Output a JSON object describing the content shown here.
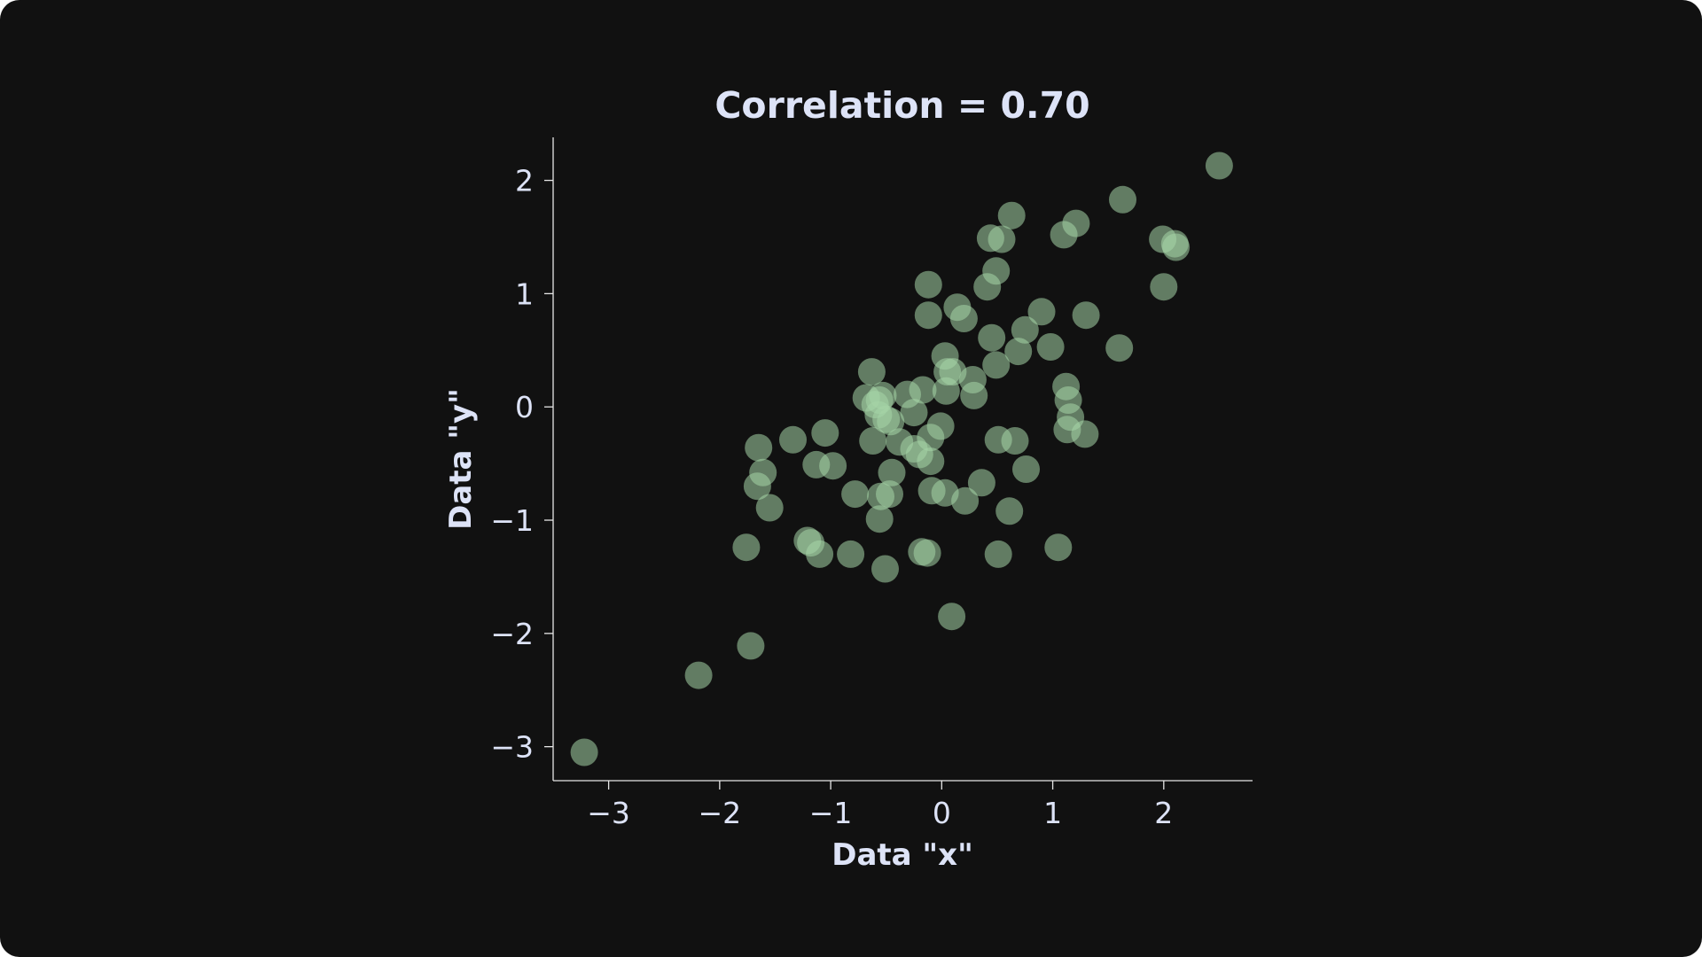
{
  "chart_data": {
    "type": "scatter",
    "title": "Correlation = 0.70",
    "xlabel": "Data \"x\"",
    "ylabel": "Data \"y\"",
    "xlim": [
      -3.5,
      2.8
    ],
    "ylim": [
      -3.3,
      2.38
    ],
    "xticks": [
      -3,
      -2,
      -1,
      0,
      1,
      2
    ],
    "yticks": [
      -3,
      -2,
      -1,
      0,
      1,
      2
    ],
    "xtick_labels": [
      "−3",
      "−2",
      "−1",
      "0",
      "1",
      "2"
    ],
    "ytick_labels": [
      "−3",
      "−2",
      "−1",
      "0",
      "1",
      "2"
    ],
    "grid": false,
    "points": [
      [
        -3.22,
        -3.05
      ],
      [
        -2.19,
        -2.37
      ],
      [
        -1.72,
        -2.11
      ],
      [
        -1.76,
        -1.24
      ],
      [
        -1.65,
        -0.36
      ],
      [
        -1.61,
        -0.58
      ],
      [
        -1.66,
        -0.7
      ],
      [
        -1.55,
        -0.89
      ],
      [
        -1.34,
        -0.29
      ],
      [
        -1.05,
        -0.23
      ],
      [
        -1.13,
        -0.51
      ],
      [
        -0.98,
        -0.52
      ],
      [
        -1.21,
        -1.18
      ],
      [
        -1.18,
        -1.2
      ],
      [
        -1.1,
        -1.3
      ],
      [
        -0.82,
        -1.3
      ],
      [
        -0.78,
        -0.77
      ],
      [
        -0.55,
        -0.79
      ],
      [
        -0.47,
        -0.77
      ],
      [
        -0.45,
        -0.58
      ],
      [
        -0.56,
        -0.99
      ],
      [
        -0.51,
        -1.43
      ],
      [
        -0.18,
        -1.28
      ],
      [
        -0.13,
        -1.29
      ],
      [
        0.09,
        -1.85
      ],
      [
        -0.68,
        0.08
      ],
      [
        -0.63,
        0.31
      ],
      [
        -0.6,
        0.02
      ],
      [
        -0.56,
        0.06
      ],
      [
        -0.53,
        0.1
      ],
      [
        -0.57,
        -0.07
      ],
      [
        -0.5,
        -0.11
      ],
      [
        -0.46,
        -0.13
      ],
      [
        -0.62,
        -0.3
      ],
      [
        -0.38,
        -0.31
      ],
      [
        -0.31,
        0.11
      ],
      [
        -0.25,
        -0.05
      ],
      [
        -0.17,
        0.15
      ],
      [
        -0.25,
        -0.37
      ],
      [
        -0.2,
        -0.42
      ],
      [
        -0.1,
        -0.27
      ],
      [
        -0.01,
        -0.17
      ],
      [
        -0.09,
        -0.74
      ],
      [
        0.03,
        -0.76
      ],
      [
        -0.1,
        -0.48
      ],
      [
        0.21,
        -0.83
      ],
      [
        0.36,
        -0.67
      ],
      [
        0.61,
        -0.92
      ],
      [
        0.51,
        -1.3
      ],
      [
        1.05,
        -1.24
      ],
      [
        0.51,
        -0.29
      ],
      [
        0.66,
        -0.3
      ],
      [
        0.76,
        -0.55
      ],
      [
        0.03,
        0.45
      ],
      [
        0.05,
        0.31
      ],
      [
        0.1,
        0.31
      ],
      [
        0.04,
        0.14
      ],
      [
        0.28,
        0.24
      ],
      [
        0.29,
        0.1
      ],
      [
        0.49,
        0.37
      ],
      [
        -0.12,
        0.81
      ],
      [
        0.2,
        0.78
      ],
      [
        0.45,
        0.61
      ],
      [
        0.69,
        0.49
      ],
      [
        0.75,
        0.68
      ],
      [
        0.9,
        0.84
      ],
      [
        0.98,
        0.53
      ],
      [
        0.14,
        0.88
      ],
      [
        -0.12,
        1.08
      ],
      [
        0.41,
        1.06
      ],
      [
        0.49,
        1.2
      ],
      [
        0.44,
        1.49
      ],
      [
        0.54,
        1.48
      ],
      [
        0.63,
        1.69
      ],
      [
        1.1,
        1.52
      ],
      [
        1.21,
        1.62
      ],
      [
        1.3,
        0.81
      ],
      [
        1.6,
        0.52
      ],
      [
        1.12,
        0.18
      ],
      [
        1.14,
        0.06
      ],
      [
        1.16,
        -0.09
      ],
      [
        1.13,
        -0.2
      ],
      [
        1.29,
        -0.24
      ],
      [
        1.63,
        1.83
      ],
      [
        1.99,
        1.48
      ],
      [
        2.1,
        1.44
      ],
      [
        2.11,
        1.41
      ],
      [
        2.0,
        1.06
      ],
      [
        2.5,
        2.13
      ]
    ],
    "style": {
      "background": "#111111",
      "point_color": "#a5d6a7",
      "point_alpha": 0.55,
      "text_color": "#dde3f7",
      "axis_color": "#e6e6e6"
    }
  }
}
